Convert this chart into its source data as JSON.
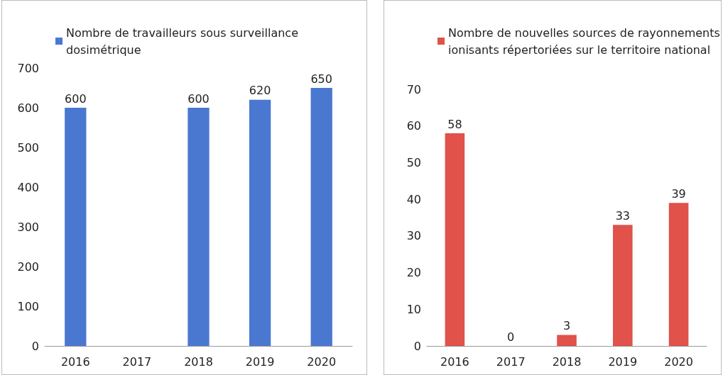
{
  "chart_data": [
    {
      "type": "bar",
      "categories": [
        "2016",
        "2017",
        "2018",
        "2019",
        "2020"
      ],
      "series": [
        {
          "name": "Nombre de travailleurs sous surveillance dosimétrique",
          "color": "#4a78d0",
          "values": [
            600,
            null,
            600,
            620,
            650
          ]
        }
      ],
      "ylim": [
        0,
        700
      ],
      "yticks": [
        0,
        100,
        200,
        300,
        400,
        500,
        600,
        700
      ],
      "data_labels": true,
      "legend": "top",
      "grid": false
    },
    {
      "type": "bar",
      "categories": [
        "2016",
        "2017",
        "2018",
        "2019",
        "2020"
      ],
      "series": [
        {
          "name": "Nombre de nouvelles sources de rayonnements ionisants répertoriées sur le territoire national",
          "color": "#e0524a",
          "values": [
            58,
            0,
            3,
            33,
            39
          ]
        }
      ],
      "ylim": [
        0,
        70
      ],
      "yticks": [
        0,
        10,
        20,
        30,
        40,
        50,
        60,
        70
      ],
      "data_labels": true,
      "legend": "top",
      "grid": false
    }
  ]
}
